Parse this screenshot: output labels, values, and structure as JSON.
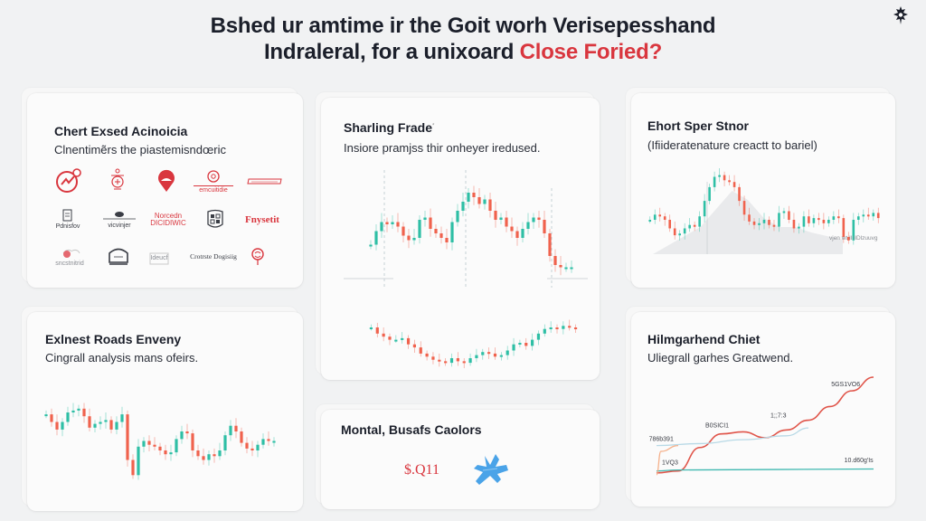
{
  "header": {
    "line1": "Bshed ur amtime ir the Goit worh Verisepesshand",
    "line2_prefix": "Indraleral, for a unixoard ",
    "line2_accent": "Close Foried?",
    "corner_icon": "settings-badge-icon"
  },
  "colors": {
    "accent_red": "#d9363e",
    "candle_up": "#2ebfa5",
    "candle_down": "#f0624d",
    "line_blue": "#4aa3e8",
    "background": "#f1f2f3",
    "card": "#fbfbfb"
  },
  "cards": {
    "logos": {
      "title": "Chert Exsed Acinoicia",
      "subtitle": "Clnentimẽrs the piastemisndœric",
      "items": [
        {
          "icon": "trend-circle-icon",
          "label": ""
        },
        {
          "icon": "crest-icon",
          "label": ""
        },
        {
          "icon": "map-pin-icon",
          "label": ""
        },
        {
          "icon": "coin-emblem-icon",
          "label": "emcuitidie"
        },
        {
          "icon": "banner-icon",
          "label": ""
        },
        {
          "icon": "document-icon",
          "label": "Pdnisfov"
        },
        {
          "icon": "cloud-icon",
          "label": "vicvinjer"
        },
        {
          "icon": "",
          "label": "Norcedn DICIDIWIC"
        },
        {
          "icon": "qr-shield-icon",
          "label": ""
        },
        {
          "icon": "",
          "label": "Fnysetit"
        },
        {
          "icon": "heart-icon",
          "label": "sncstnitrid"
        },
        {
          "icon": "monitor-icon",
          "label": ""
        },
        {
          "icon": "frame-icon",
          "label": "Ideucf"
        },
        {
          "icon": "",
          "label": "Crotrste Dogisiig"
        },
        {
          "icon": "seal-icon",
          "label": ""
        }
      ]
    },
    "sharing": {
      "title": "Sharling Frade",
      "title_mark": "*",
      "subtitle": "Insiore pramjss thir onheyer iredused."
    },
    "short_spread": {
      "title": "Ehort Sper Stnor",
      "subtitle": "(Ifiideratenature creactt to bariel)",
      "overlay_label": "vjen wt Il:ilDlzuuvg"
    },
    "exnest": {
      "title": "Exlnest Roads Enveny",
      "subtitle": "Cingrall analysis mans ofeirs."
    },
    "montal": {
      "title": "Montal, Busafs Caolors",
      "price": "$.Q11",
      "icon": "blue-splash-icon"
    },
    "trend": {
      "title": "Hilmgarhend Chiet",
      "subtitle": "Uliegrall garhes Greatwend."
    }
  },
  "chart_data": [
    {
      "type": "candlestick",
      "name": "sharing-frade-chart",
      "title": "Sharling Frade",
      "upper_series_close": [
        50,
        62,
        70,
        68,
        70,
        66,
        58,
        54,
        56,
        72,
        74,
        64,
        60,
        56,
        52,
        70,
        80,
        88,
        96,
        92,
        86,
        90,
        80,
        72,
        74,
        66,
        62,
        56,
        64,
        70,
        74,
        72,
        60,
        40,
        32,
        30,
        30,
        30
      ],
      "lower_series_close": [
        60,
        52,
        48,
        44,
        44,
        46,
        38,
        34,
        26,
        22,
        18,
        16,
        14,
        20,
        16,
        14,
        20,
        24,
        28,
        26,
        22,
        24,
        30,
        38,
        40,
        36,
        44,
        52,
        58,
        60,
        58,
        62,
        60,
        58
      ],
      "reference_lines": 3,
      "ylim": [
        0,
        100
      ]
    },
    {
      "type": "candlestick",
      "name": "short-spread-chart",
      "title": "Ehort Sper Stnor",
      "close": [
        40,
        46,
        44,
        40,
        30,
        22,
        24,
        30,
        34,
        32,
        44,
        62,
        78,
        90,
        92,
        86,
        84,
        78,
        62,
        46,
        38,
        34,
        36,
        40,
        34,
        32,
        48,
        50,
        40,
        30,
        32,
        44,
        36,
        42,
        40,
        36,
        40,
        44,
        42,
        20,
        16,
        40,
        44,
        46,
        44,
        48,
        42
      ],
      "area_profile": [
        0,
        10,
        20,
        30,
        50,
        70,
        60,
        40,
        30,
        30,
        24,
        20,
        16
      ],
      "ylim": [
        0,
        100
      ]
    },
    {
      "type": "candlestick",
      "name": "exnest-chart",
      "title": "Exlnest Roads Enveny",
      "close": [
        78,
        70,
        62,
        70,
        80,
        82,
        84,
        76,
        64,
        68,
        70,
        72,
        62,
        70,
        78,
        30,
        14,
        44,
        50,
        46,
        44,
        40,
        36,
        38,
        52,
        60,
        58,
        40,
        34,
        30,
        36,
        34,
        40,
        56,
        66,
        60,
        48,
        42,
        40,
        46,
        52,
        50,
        50
      ],
      "ylim": [
        0,
        100
      ]
    },
    {
      "type": "line",
      "name": "trend-chart",
      "title": "Hilmgarhend Chiet",
      "series": [
        {
          "name": "red",
          "color": "#e0554a",
          "x": [
            0,
            10,
            20,
            30,
            40,
            50,
            60,
            70,
            80,
            90,
            100
          ],
          "values": [
            2,
            4,
            28,
            42,
            44,
            38,
            46,
            56,
            70,
            86,
            100
          ]
        },
        {
          "name": "light-blue",
          "color": "#b8d9e6",
          "x": [
            0,
            20,
            40,
            60,
            70
          ],
          "values": [
            30,
            32,
            36,
            40,
            48
          ]
        },
        {
          "name": "teal",
          "color": "#3fb8b0",
          "x": [
            0,
            10,
            100
          ],
          "values": [
            4,
            5,
            6
          ]
        },
        {
          "name": "peach",
          "color": "#f5b08a",
          "x": [
            0,
            2,
            10
          ],
          "values": [
            0,
            24,
            30
          ]
        }
      ],
      "annotations": [
        {
          "text": "5GS1VO6",
          "x": 88,
          "y": 88
        },
        {
          "text": "1;;7:3",
          "x": 60,
          "y": 56
        },
        {
          "text": "B0SICI1",
          "x": 30,
          "y": 46
        },
        {
          "text": "786b391",
          "x": 4,
          "y": 32
        },
        {
          "text": "1VQ3",
          "x": 10,
          "y": 8
        },
        {
          "text": "10.d60g'Is",
          "x": 94,
          "y": 10
        }
      ],
      "ylim": [
        0,
        100
      ]
    }
  ]
}
